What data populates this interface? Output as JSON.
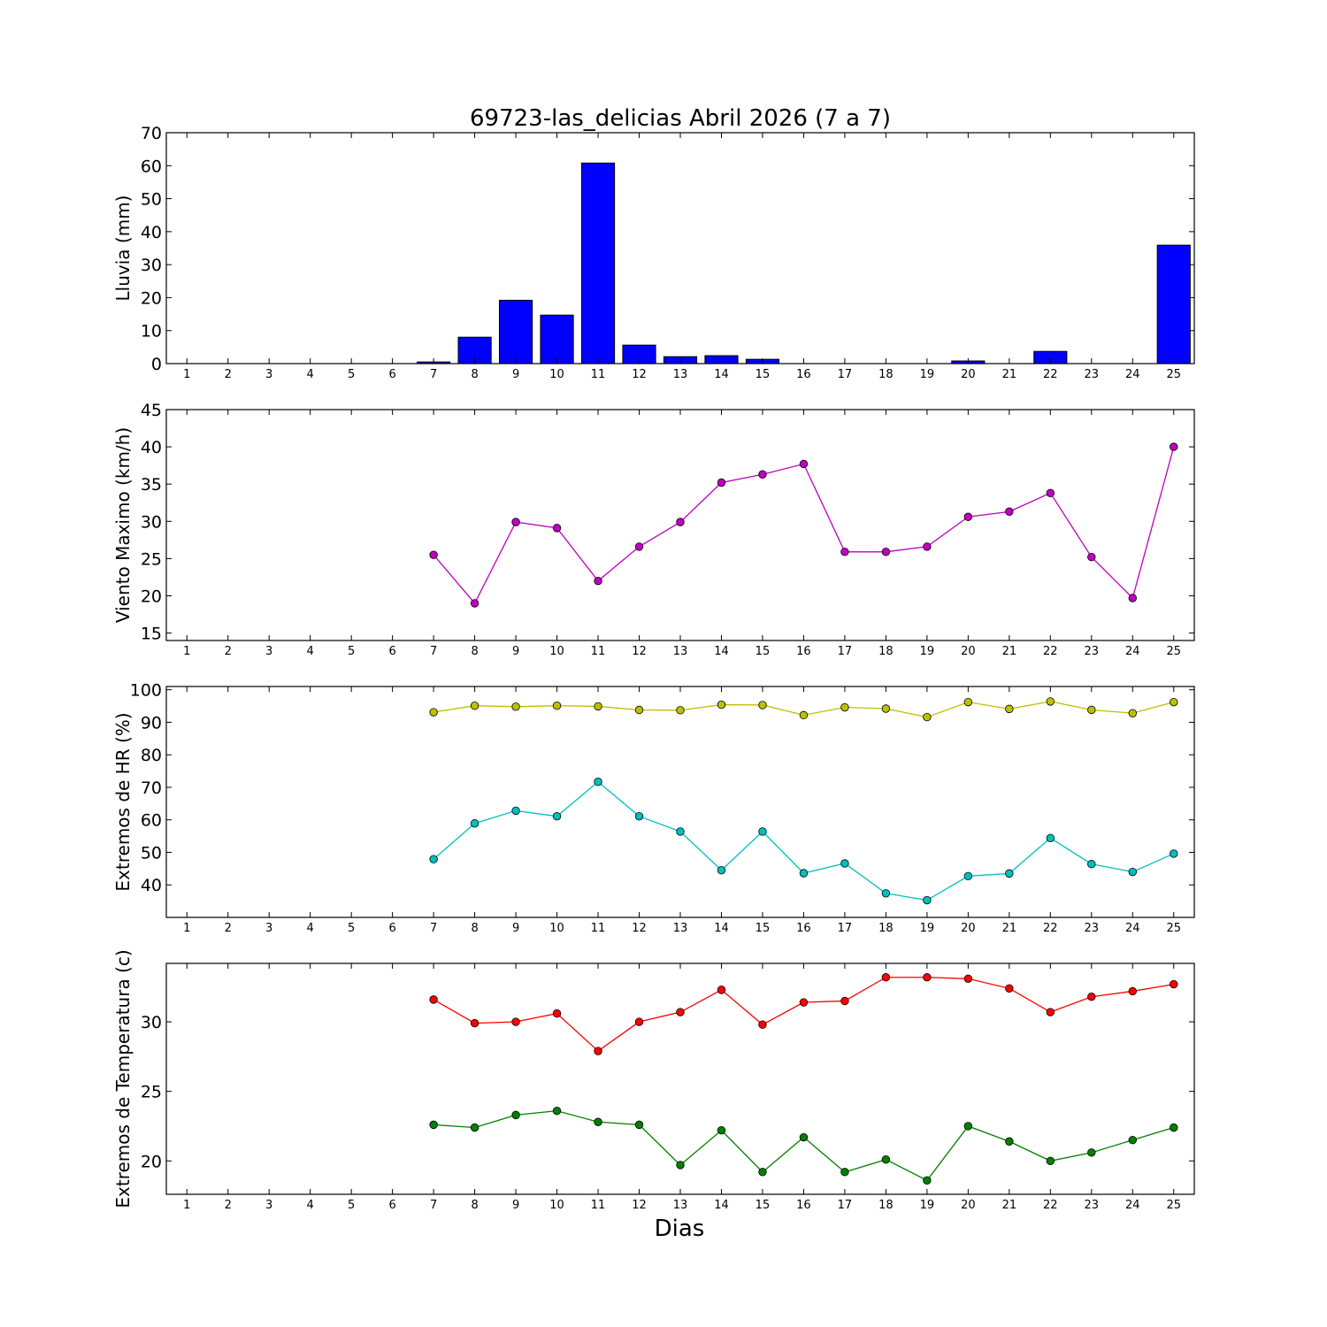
{
  "figure": {
    "title": "69723-las_delicias Abril 2026  (7 a 7)",
    "xlabel": "Dias"
  },
  "chart_data": [
    {
      "type": "bar",
      "ylabel": "Lluvia (mm)",
      "ylim": [
        0,
        70
      ],
      "yticks": [
        0,
        10,
        20,
        30,
        40,
        50,
        60,
        70
      ],
      "categories": [
        1,
        2,
        3,
        4,
        5,
        6,
        7,
        8,
        9,
        10,
        11,
        12,
        13,
        14,
        15,
        16,
        17,
        18,
        19,
        20,
        21,
        22,
        23,
        24,
        25
      ],
      "x": [
        7,
        8,
        9,
        10,
        11,
        12,
        13,
        14,
        15,
        16,
        17,
        18,
        19,
        20,
        21,
        22,
        23,
        24,
        25
      ],
      "series": [
        {
          "color": "#0000ff",
          "values": [
            0.5,
            8.0,
            19.2,
            14.7,
            60.8,
            5.6,
            2.1,
            2.4,
            1.3,
            0,
            0,
            0,
            0,
            0.8,
            0,
            3.7,
            0,
            0,
            35.9
          ]
        }
      ]
    },
    {
      "type": "line",
      "ylabel": "Viento Maximo (km/h)",
      "ylim": [
        14,
        45
      ],
      "yticks": [
        15,
        20,
        25,
        30,
        35,
        40,
        45
      ],
      "categories": [
        1,
        2,
        3,
        4,
        5,
        6,
        7,
        8,
        9,
        10,
        11,
        12,
        13,
        14,
        15,
        16,
        17,
        18,
        19,
        20,
        21,
        22,
        23,
        24,
        25
      ],
      "x": [
        7,
        8,
        9,
        10,
        11,
        12,
        13,
        14,
        15,
        16,
        17,
        18,
        19,
        20,
        21,
        22,
        23,
        24,
        25
      ],
      "series": [
        {
          "color": "#bf00bf",
          "values": [
            25.5,
            19.0,
            29.9,
            29.1,
            22.0,
            26.6,
            29.9,
            35.2,
            36.3,
            37.7,
            25.9,
            25.9,
            26.6,
            30.6,
            31.3,
            33.8,
            25.2,
            19.7,
            40.0
          ]
        }
      ]
    },
    {
      "type": "line",
      "ylabel": "Extremos de HR (%)",
      "ylim": [
        30,
        101
      ],
      "yticks": [
        40,
        50,
        60,
        70,
        80,
        90,
        100
      ],
      "categories": [
        1,
        2,
        3,
        4,
        5,
        6,
        7,
        8,
        9,
        10,
        11,
        12,
        13,
        14,
        15,
        16,
        17,
        18,
        19,
        20,
        21,
        22,
        23,
        24,
        25
      ],
      "x": [
        7,
        8,
        9,
        10,
        11,
        12,
        13,
        14,
        15,
        16,
        17,
        18,
        19,
        20,
        21,
        22,
        23,
        24,
        25
      ],
      "series": [
        {
          "color": "#bfbf00",
          "values": [
            93.1,
            95.1,
            94.8,
            95.1,
            94.9,
            93.8,
            93.7,
            95.4,
            95.3,
            92.2,
            94.6,
            94.2,
            91.6,
            96.2,
            94.1,
            96.4,
            93.8,
            92.8,
            96.2
          ]
        },
        {
          "color": "#00bfbf",
          "values": [
            47.9,
            58.9,
            62.8,
            61.1,
            71.7,
            61.1,
            56.4,
            44.5,
            56.4,
            43.6,
            46.6,
            37.4,
            35.3,
            42.7,
            43.5,
            54.4,
            46.4,
            44.0,
            49.6
          ]
        }
      ]
    },
    {
      "type": "line",
      "ylabel": "Extremos de Temperatura (c)",
      "ylim": [
        17.6,
        34.2
      ],
      "yticks": [
        20,
        25,
        30
      ],
      "categories": [
        1,
        2,
        3,
        4,
        5,
        6,
        7,
        8,
        9,
        10,
        11,
        12,
        13,
        14,
        15,
        16,
        17,
        18,
        19,
        20,
        21,
        22,
        23,
        24,
        25
      ],
      "x": [
        7,
        8,
        9,
        10,
        11,
        12,
        13,
        14,
        15,
        16,
        17,
        18,
        19,
        20,
        21,
        22,
        23,
        24,
        25
      ],
      "series": [
        {
          "color": "#ff0000",
          "values": [
            31.6,
            29.9,
            30.0,
            30.6,
            27.9,
            30.0,
            30.7,
            32.3,
            29.8,
            31.4,
            31.5,
            33.2,
            33.2,
            33.1,
            32.4,
            30.7,
            31.8,
            32.2,
            32.7
          ]
        },
        {
          "color": "#008000",
          "values": [
            22.6,
            22.4,
            23.3,
            23.6,
            22.8,
            22.6,
            19.7,
            22.2,
            19.2,
            21.7,
            19.2,
            20.1,
            18.6,
            22.5,
            21.4,
            20.0,
            20.6,
            21.5,
            22.4
          ]
        }
      ]
    }
  ]
}
